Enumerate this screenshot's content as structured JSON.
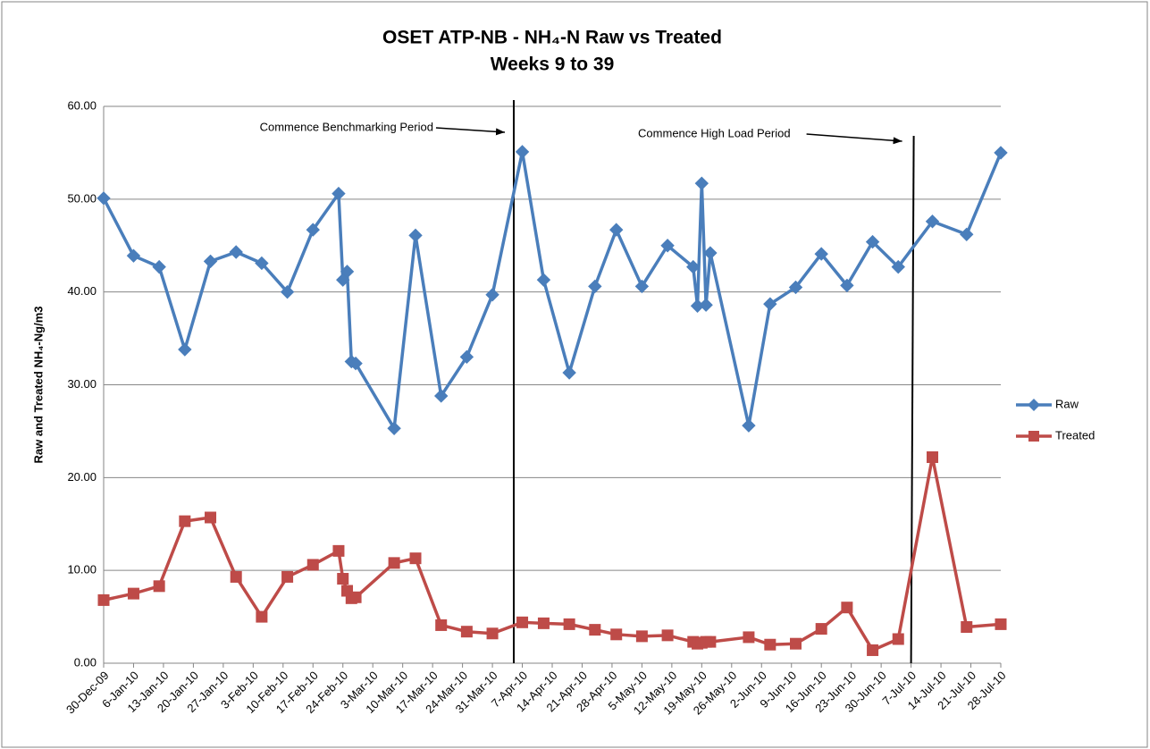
{
  "chart_data": {
    "type": "line",
    "title": [
      "OSET ATP-NB - NH₄-N Raw vs Treated",
      "Weeks 9 to 39"
    ],
    "y_label": "Raw and Treated NH₄-Ng/m3",
    "x": [
      "2009-12-30",
      "2010-01-06",
      "2010-01-12",
      "2010-01-18",
      "2010-01-24",
      "2010-01-30",
      "2010-02-05",
      "2010-02-11",
      "2010-02-17",
      "2010-02-23",
      "2010-02-24",
      "2010-02-25",
      "2010-02-26",
      "2010-02-27",
      "2010-03-08",
      "2010-03-13",
      "2010-03-19",
      "2010-03-25",
      "2010-03-31",
      "2010-04-07",
      "2010-04-12",
      "2010-04-18",
      "2010-04-24",
      "2010-04-29",
      "2010-05-05",
      "2010-05-11",
      "2010-05-17",
      "2010-05-18",
      "2010-05-19",
      "2010-05-20",
      "2010-05-21",
      "2010-05-30",
      "2010-06-04",
      "2010-06-10",
      "2010-06-16",
      "2010-06-22",
      "2010-06-28",
      "2010-07-04",
      "2010-07-12",
      "2010-07-20",
      "2010-07-28"
    ],
    "series": [
      {
        "name": "Raw",
        "color": "#4a7ebb",
        "marker": "diamond",
        "values": [
          50.1,
          43.9,
          42.7,
          33.8,
          43.3,
          44.3,
          43.1,
          40.0,
          46.7,
          50.6,
          41.3,
          42.2,
          32.5,
          32.3,
          25.3,
          46.1,
          28.8,
          33.0,
          39.7,
          55.1,
          41.3,
          31.3,
          40.6,
          46.7,
          40.6,
          45.0,
          42.7,
          38.5,
          51.7,
          38.6,
          44.2,
          25.6,
          38.7,
          40.5,
          44.1,
          40.7,
          45.4,
          42.7,
          47.6,
          46.2,
          55.0
        ]
      },
      {
        "name": "Treated",
        "color": "#be4b48",
        "marker": "square",
        "values": [
          6.8,
          7.5,
          8.3,
          15.3,
          15.7,
          9.3,
          5.0,
          9.3,
          10.6,
          12.1,
          9.1,
          7.8,
          7.0,
          7.1,
          10.8,
          11.3,
          4.1,
          3.4,
          3.2,
          4.4,
          4.3,
          4.2,
          3.6,
          3.1,
          2.9,
          3.0,
          2.3,
          2.1,
          2.2,
          2.3,
          2.3,
          2.8,
          2.0,
          2.1,
          3.7,
          6.0,
          1.4,
          2.6,
          22.2,
          3.9,
          4.2
        ]
      }
    ],
    "xlim": [
      "2009-12-30",
      "2010-07-28"
    ],
    "xticks": [
      {
        "value": "2009-12-30",
        "label": "30-Dec-09"
      },
      {
        "value": "2010-01-06",
        "label": "6-Jan-10"
      },
      {
        "value": "2010-01-13",
        "label": "13-Jan-10"
      },
      {
        "value": "2010-01-20",
        "label": "20-Jan-10"
      },
      {
        "value": "2010-01-27",
        "label": "27-Jan-10"
      },
      {
        "value": "2010-02-03",
        "label": "3-Feb-10"
      },
      {
        "value": "2010-02-10",
        "label": "10-Feb-10"
      },
      {
        "value": "2010-02-17",
        "label": "17-Feb-10"
      },
      {
        "value": "2010-02-24",
        "label": "24-Feb-10"
      },
      {
        "value": "2010-03-03",
        "label": "3-Mar-10"
      },
      {
        "value": "2010-03-10",
        "label": "10-Mar-10"
      },
      {
        "value": "2010-03-17",
        "label": "17-Mar-10"
      },
      {
        "value": "2010-03-24",
        "label": "24-Mar-10"
      },
      {
        "value": "2010-03-31",
        "label": "31-Mar-10"
      },
      {
        "value": "2010-04-07",
        "label": "7-Apr-10"
      },
      {
        "value": "2010-04-14",
        "label": "14-Apr-10"
      },
      {
        "value": "2010-04-21",
        "label": "21-Apr-10"
      },
      {
        "value": "2010-04-28",
        "label": "28-Apr-10"
      },
      {
        "value": "2010-05-05",
        "label": "5-May-10"
      },
      {
        "value": "2010-05-12",
        "label": "12-May-10"
      },
      {
        "value": "2010-05-19",
        "label": "19-May-10"
      },
      {
        "value": "2010-05-26",
        "label": "26-May-10"
      },
      {
        "value": "2010-06-02",
        "label": "2-Jun-10"
      },
      {
        "value": "2010-06-09",
        "label": "9-Jun-10"
      },
      {
        "value": "2010-06-16",
        "label": "16-Jun-10"
      },
      {
        "value": "2010-06-23",
        "label": "23-Jun-10"
      },
      {
        "value": "2010-06-30",
        "label": "30-Jun-10"
      },
      {
        "value": "2010-07-07",
        "label": "7-Jul-10"
      },
      {
        "value": "2010-07-14",
        "label": "14-Jul-10"
      },
      {
        "value": "2010-07-21",
        "label": "21-Jul-10"
      },
      {
        "value": "2010-07-28",
        "label": "28-Jul-10"
      }
    ],
    "ylim": [
      0,
      60
    ],
    "yticks": [
      {
        "value": 0,
        "label": "0.00"
      },
      {
        "value": 10,
        "label": "10.00"
      },
      {
        "value": 20,
        "label": "20.00"
      },
      {
        "value": 30,
        "label": "30.00"
      },
      {
        "value": 40,
        "label": "40.00"
      },
      {
        "value": 50,
        "label": "50.00"
      },
      {
        "value": 60,
        "label": "60.00"
      }
    ],
    "grid": true,
    "legend": "right",
    "annotations": [
      {
        "text": "Commence Benchmarking Period",
        "x": "2010-04-05"
      },
      {
        "text": "Commence High Load Period",
        "x": "2010-07-07"
      }
    ]
  }
}
